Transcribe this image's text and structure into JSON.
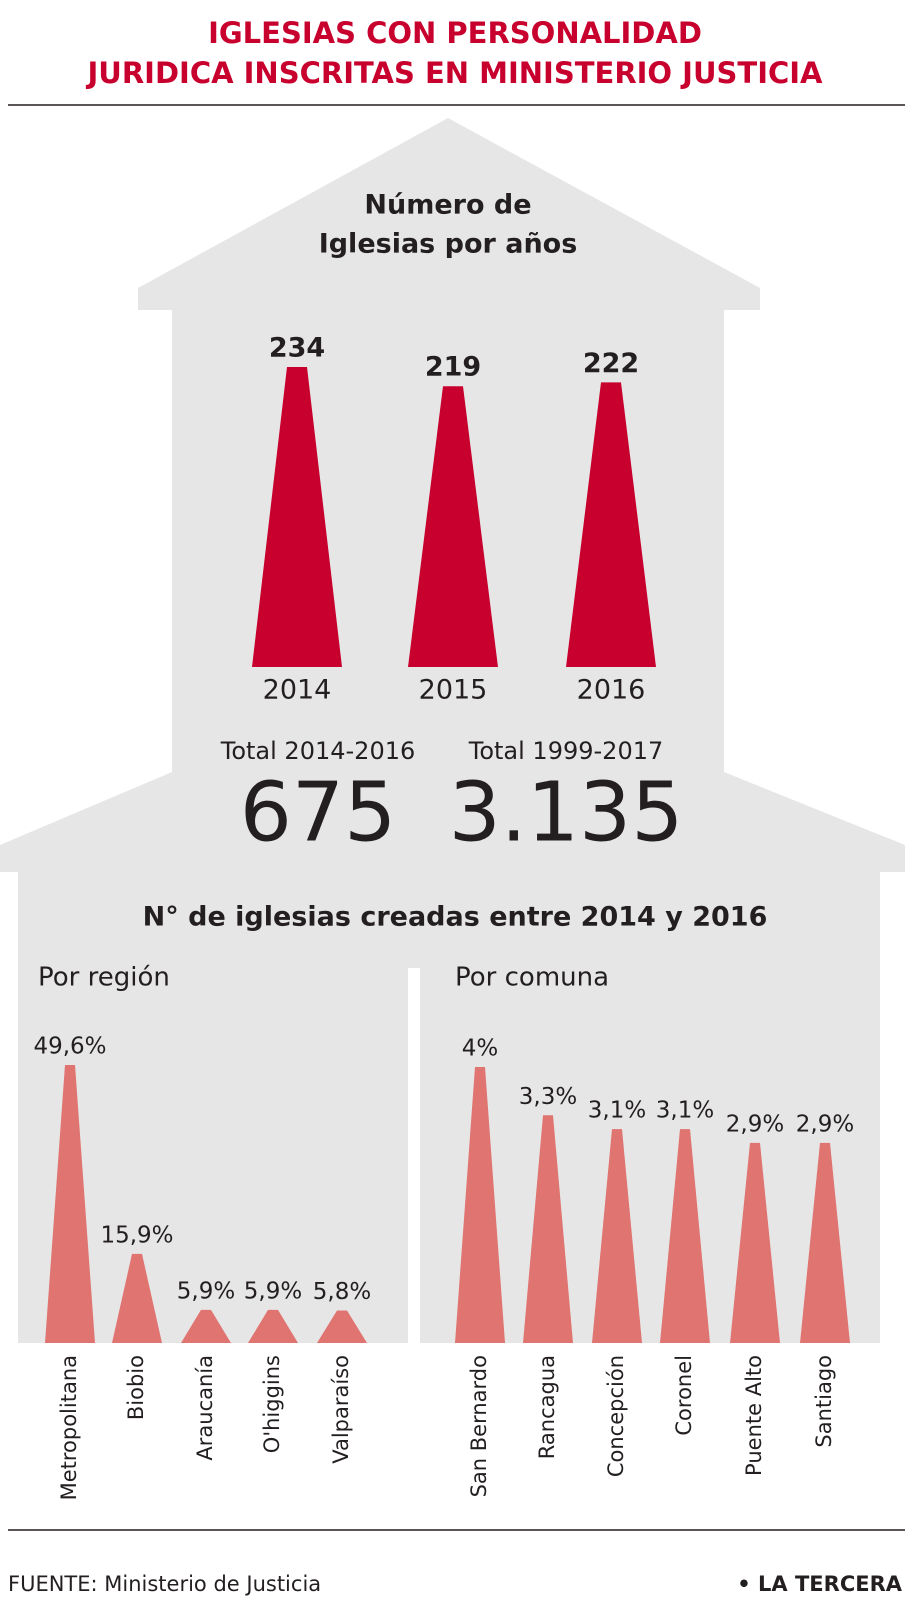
{
  "title": [
    "IGLESIAS  CON PERSONALIDAD",
    "JURIDICA INSCRITAS EN MINISTERIO JUSTICIA"
  ],
  "chart_data": [
    {
      "type": "bar",
      "title": [
        "Número de",
        "Iglesias por años"
      ],
      "categories": [
        "2014",
        "2015",
        "2016"
      ],
      "values": [
        234,
        219,
        222
      ],
      "color": "#c8002d"
    },
    {
      "type": "bar",
      "title": "Por región",
      "categories": [
        "Metropolitana",
        "Biobio",
        "Araucanía",
        "O'higgins",
        "Valparaíso"
      ],
      "values": [
        49.6,
        15.9,
        5.9,
        5.9,
        5.8
      ],
      "value_labels": [
        "49,6%",
        "15,9%",
        "5,9%",
        "5,9%",
        "5,8%"
      ],
      "color": "#e07470"
    },
    {
      "type": "bar",
      "title": "Por comuna",
      "categories": [
        "San Bernardo",
        "Rancagua",
        "Concepción",
        "Coronel",
        "Puente Alto",
        "Santiago"
      ],
      "values": [
        4,
        3.3,
        3.1,
        3.1,
        2.9,
        2.9
      ],
      "value_labels": [
        "4%",
        "3,3%",
        "3,1%",
        "3,1%",
        "2,9%",
        "2,9%"
      ],
      "color": "#e07470"
    }
  ],
  "totals": [
    {
      "label": "Total 2014-2016",
      "value": "675",
      "color": "#c8002d"
    },
    {
      "label": "Total 1999-2017",
      "value": "3.135",
      "color": "#4a5f6d"
    }
  ],
  "section_title": "N° de iglesias creadas entre 2014 y 2016",
  "footer": {
    "source": "FUENTE: Ministerio de Justicia",
    "brand": "• LA TERCERA"
  }
}
